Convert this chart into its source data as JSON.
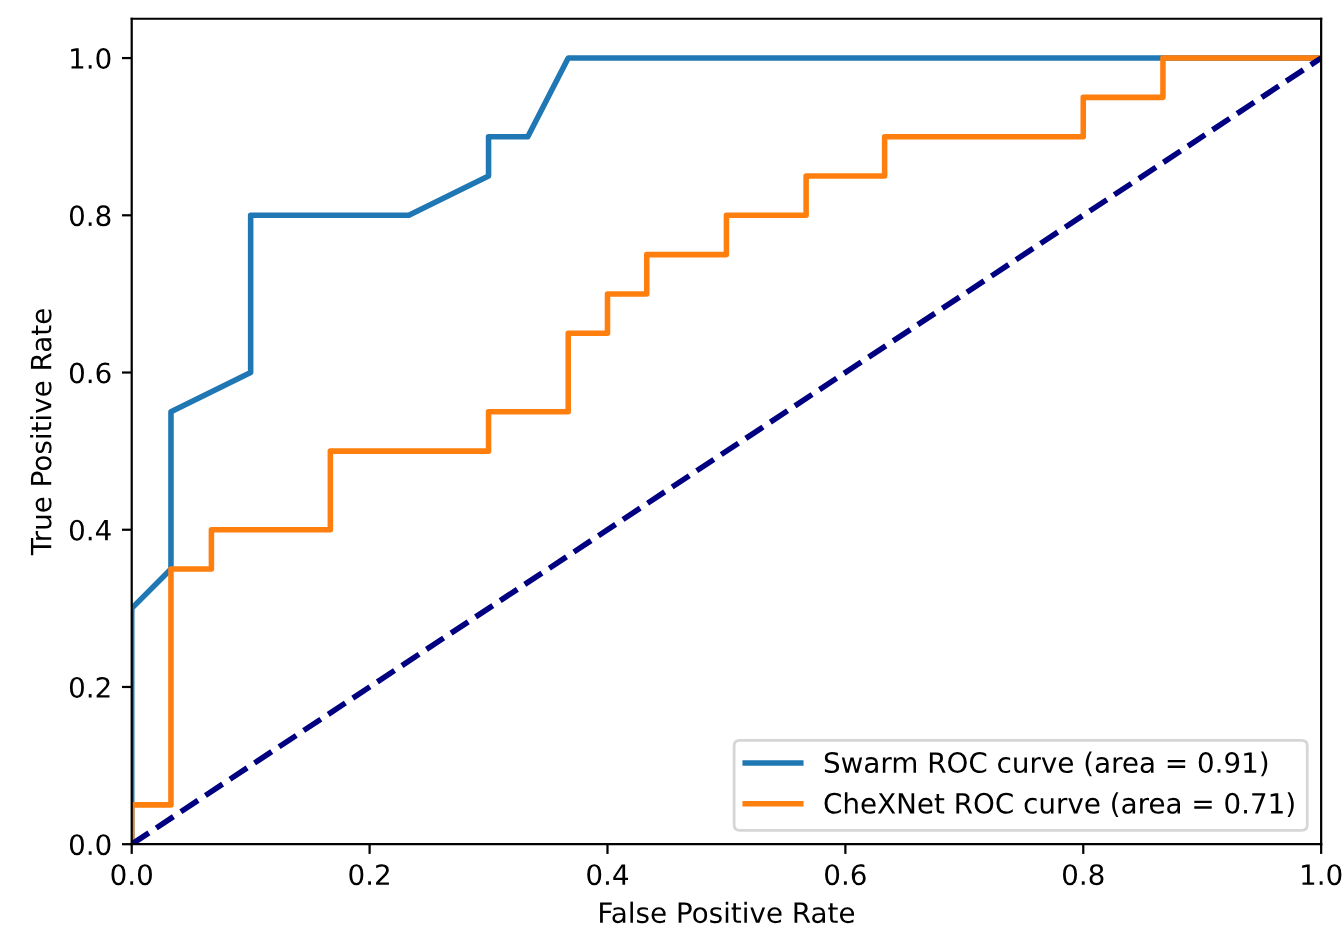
{
  "chart_data": {
    "type": "line",
    "xlabel": "False Positive Rate",
    "ylabel": "True Positive Rate",
    "xlim": [
      0,
      1
    ],
    "ylim": [
      0,
      1.05
    ],
    "xticks": [
      {
        "value": 0,
        "label": "0.0"
      },
      {
        "value": 0.2,
        "label": "0.2"
      },
      {
        "value": 0.4,
        "label": "0.4"
      },
      {
        "value": 0.6,
        "label": "0.6"
      },
      {
        "value": 0.8,
        "label": "0.8"
      },
      {
        "value": 1,
        "label": "1.0"
      }
    ],
    "yticks": [
      {
        "value": 0,
        "label": "0.0"
      },
      {
        "value": 0.2,
        "label": "0.2"
      },
      {
        "value": 0.4,
        "label": "0.4"
      },
      {
        "value": 0.6,
        "label": "0.6"
      },
      {
        "value": 0.8,
        "label": "0.8"
      },
      {
        "value": 1,
        "label": "1.0"
      }
    ],
    "legend": "bottom right",
    "grid": false,
    "line_style": "solid",
    "series": [
      {
        "name": "Swarm ROC curve (area = 0.91)",
        "color": "#1f77b4",
        "x": [
          0,
          0,
          0.033,
          0.033,
          0.1,
          0.1,
          0.233,
          0.3,
          0.3,
          0.333,
          0.367,
          1
        ],
        "values": [
          0,
          0.3,
          0.35,
          0.55,
          0.6,
          0.8,
          0.8,
          0.85,
          0.9,
          0.9,
          1.0,
          1.0
        ]
      },
      {
        "name": "CheXNet ROC curve (area = 0.71)",
        "color": "#ff7f0e",
        "x": [
          0,
          0,
          0.033,
          0.033,
          0.067,
          0.067,
          0.167,
          0.167,
          0.3,
          0.3,
          0.367,
          0.367,
          0.4,
          0.4,
          0.433,
          0.433,
          0.5,
          0.5,
          0.567,
          0.567,
          0.633,
          0.633,
          0.8,
          0.8,
          0.867,
          0.867,
          1
        ],
        "values": [
          0,
          0.05,
          0.05,
          0.35,
          0.35,
          0.4,
          0.4,
          0.5,
          0.5,
          0.55,
          0.55,
          0.65,
          0.65,
          0.7,
          0.7,
          0.75,
          0.75,
          0.8,
          0.8,
          0.85,
          0.85,
          0.9,
          0.9,
          0.95,
          0.95,
          1.0,
          1.0
        ]
      },
      {
        "color": "#000080",
        "line_style": "dashed",
        "x": [
          0,
          1
        ],
        "values": [
          0,
          1
        ]
      }
    ]
  }
}
